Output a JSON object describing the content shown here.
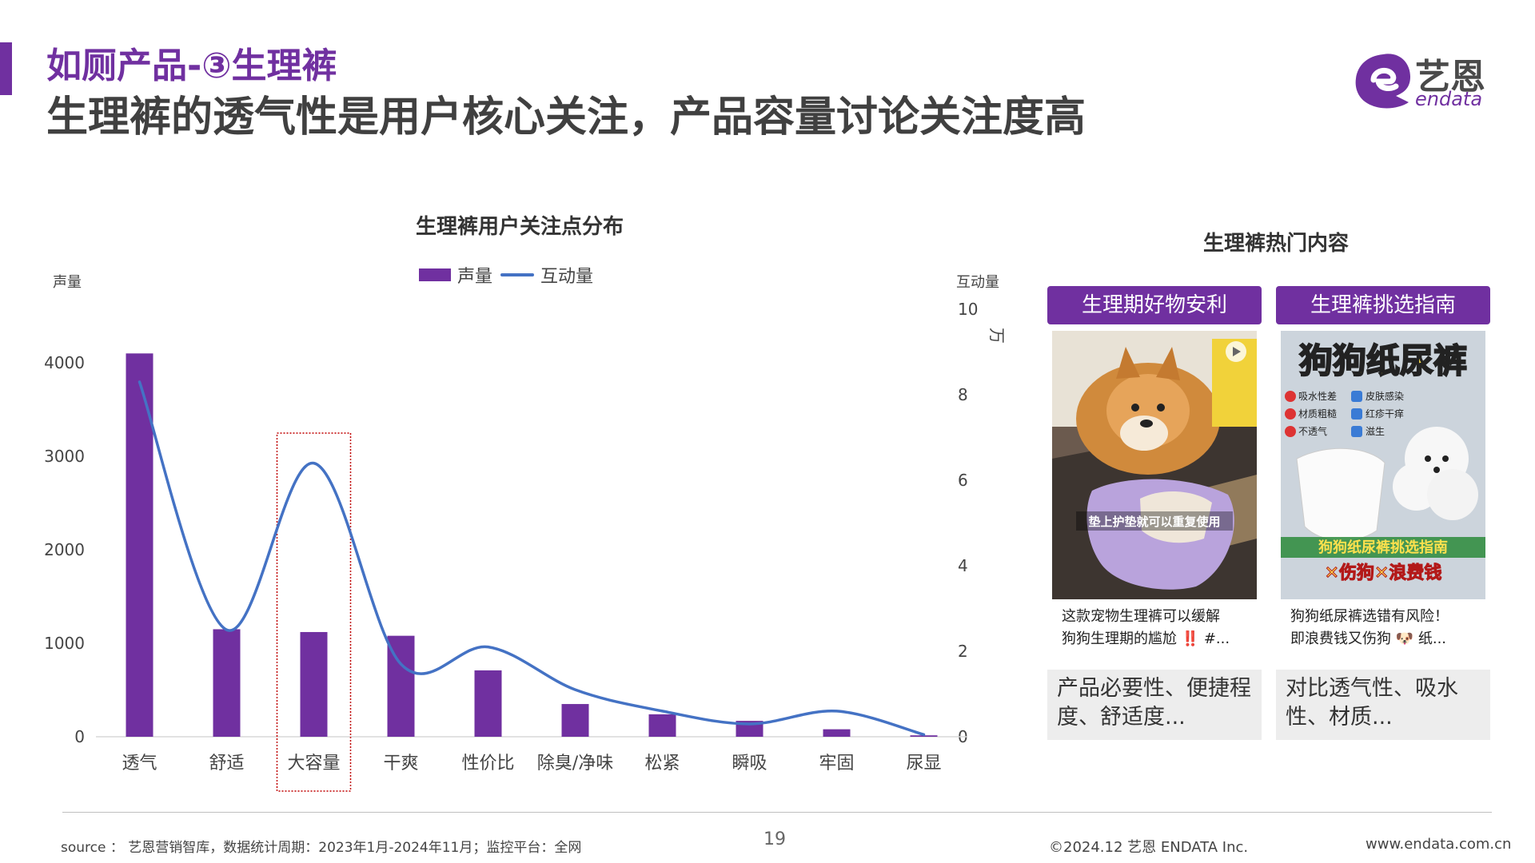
{
  "header": {
    "title_line1": "如厕产品-③生理裤",
    "title_line2": "生理裤的透气性是用户核心关注，产品容量讨论关注度高"
  },
  "logo": {
    "cn": "艺恩",
    "en": "endata"
  },
  "colors": {
    "purple": "#7030a0",
    "blue": "#4472c4",
    "highlight": "#c00000"
  },
  "chart_data": {
    "type": "bar",
    "title": "生理裤用户关注点分布",
    "categories": [
      "透气",
      "舒适",
      "大容量",
      "干爽",
      "性价比",
      "除臭/净味",
      "松紧",
      "瞬吸",
      "牢固",
      "尿显"
    ],
    "series": [
      {
        "name": "声量",
        "type": "bar",
        "axis": "left",
        "values": [
          4100,
          1150,
          1120,
          1080,
          710,
          350,
          240,
          170,
          80,
          15
        ]
      },
      {
        "name": "互动量",
        "type": "line",
        "axis": "right",
        "values": [
          8.3,
          2.5,
          6.4,
          1.7,
          2.1,
          1.1,
          0.6,
          0.3,
          0.6,
          0.05
        ]
      }
    ],
    "ylabel_left": "声量",
    "ylim_left": [
      0,
      4500
    ],
    "yticks_left": [
      "0",
      "1000",
      "2000",
      "3000",
      "4000"
    ],
    "ylabel_right": "互动量",
    "ylabel_right_unit": "万",
    "ylim_right": [
      0,
      10
    ],
    "yticks_right": [
      "0",
      "2",
      "4",
      "6",
      "8",
      "10"
    ],
    "highlighted_category": "大容量",
    "legend_position": "top"
  },
  "side": {
    "title": "生理裤热门内容",
    "cards": [
      {
        "header": "生理期好物安利",
        "image_text": "垫上护垫就可以重复使用",
        "caption_line1": "这款宠物生理裤可以缓解",
        "caption_line2": "狗狗生理期的尴尬 ‼️ #...",
        "footer": "产品必要性、便捷程度、舒适度..."
      },
      {
        "header": "生理裤挑选指南",
        "image_title": "狗狗纸尿裤",
        "image_tags": [
          "吸水性差",
          "皮肤感染",
          "材质粗糙",
          "红疹干痒",
          "不透气",
          "滋生"
        ],
        "image_banner": "狗狗纸尿裤挑选指南",
        "image_banner2": "✕伤狗✕浪费钱",
        "caption_line1": "狗狗纸尿裤选错有风险！",
        "caption_line2": "即浪费钱又伤狗 🐶 纸...",
        "footer": "对比透气性、吸水性、材质..."
      }
    ]
  },
  "footer": {
    "source": "source ： 艺恩营销智库，数据统计周期：2023年1月-2024年11月；监控平台：全网",
    "page": "19",
    "copyright": "©2024.12  艺恩  ENDATA Inc.",
    "url": "www.endata.com.cn"
  }
}
